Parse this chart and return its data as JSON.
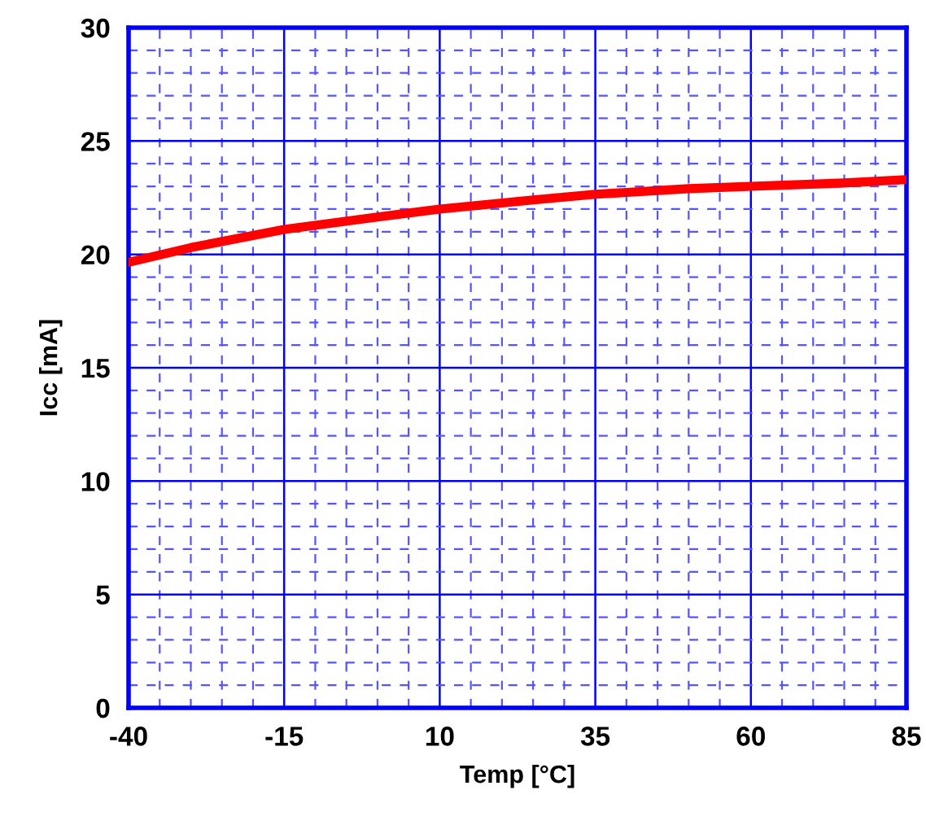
{
  "chart_data": {
    "type": "line",
    "xlabel": "Temp [°C]",
    "ylabel": "Icc [mA]",
    "x": [
      -40,
      -30,
      -15,
      0,
      10,
      25,
      35,
      50,
      60,
      75,
      85
    ],
    "series": [
      {
        "color": "#ff0000",
        "values": [
          19.65,
          20.3,
          21.1,
          21.65,
          22.0,
          22.4,
          22.65,
          22.9,
          23.0,
          23.15,
          23.3
        ]
      }
    ],
    "xlim": [
      -40,
      85
    ],
    "xticks": [
      -40,
      {
        "value": -35,
        "label": null
      },
      {
        "value": -30,
        "label": null
      },
      {
        "value": -25,
        "label": null
      },
      {
        "value": -20,
        "label": null
      },
      -15,
      {
        "value": -10,
        "label": null
      },
      {
        "value": -5,
        "label": null
      },
      {
        "value": 0,
        "label": null
      },
      {
        "value": 5,
        "label": null
      },
      10,
      {
        "value": 15,
        "label": null
      },
      {
        "value": 20,
        "label": null
      },
      {
        "value": 25,
        "label": null
      },
      {
        "value": 30,
        "label": null
      },
      35,
      {
        "value": 40,
        "label": null
      },
      {
        "value": 45,
        "label": null
      },
      {
        "value": 50,
        "label": null
      },
      {
        "value": 55,
        "label": null
      },
      60,
      {
        "value": 65,
        "label": null
      },
      {
        "value": 70,
        "label": null
      },
      {
        "value": 75,
        "label": null
      },
      {
        "value": 80,
        "label": null
      },
      85
    ],
    "ylim": [
      0,
      30
    ],
    "yticks": [
      0,
      {
        "value": 1,
        "label": null
      },
      {
        "value": 2,
        "label": null
      },
      {
        "value": 3,
        "label": null
      },
      {
        "value": 4,
        "label": null
      },
      5,
      {
        "value": 6,
        "label": null
      },
      {
        "value": 7,
        "label": null
      },
      {
        "value": 8,
        "label": null
      },
      {
        "value": 9,
        "label": null
      },
      10,
      {
        "value": 11,
        "label": null
      },
      {
        "value": 12,
        "label": null
      },
      {
        "value": 13,
        "label": null
      },
      {
        "value": 14,
        "label": null
      },
      15,
      {
        "value": 16,
        "label": null
      },
      {
        "value": 17,
        "label": null
      },
      {
        "value": 18,
        "label": null
      },
      {
        "value": 19,
        "label": null
      },
      20,
      {
        "value": 21,
        "label": null
      },
      {
        "value": 22,
        "label": null
      },
      {
        "value": 23,
        "label": null
      },
      {
        "value": 24,
        "label": null
      },
      25,
      {
        "value": 26,
        "label": null
      },
      {
        "value": 27,
        "label": null
      },
      {
        "value": 28,
        "label": null
      },
      {
        "value": 29,
        "label": null
      },
      30
    ],
    "grid": true,
    "marker": "none",
    "line_style": "solid",
    "legend": false
  }
}
